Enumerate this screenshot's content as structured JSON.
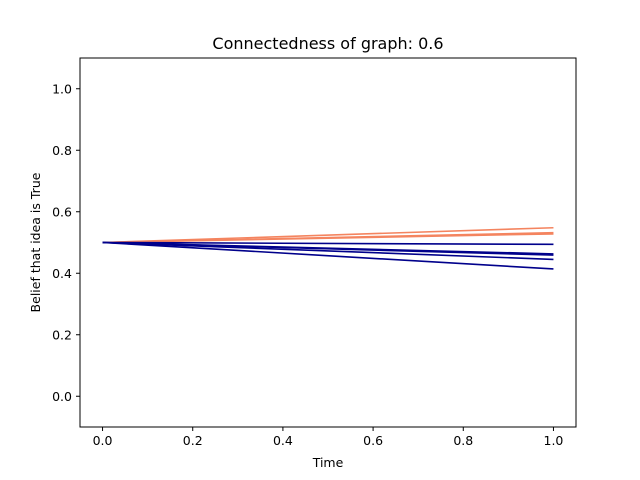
{
  "chart_data": {
    "type": "line",
    "title": "Connectedness of graph: 0.6",
    "xlabel": "Time",
    "ylabel": "Belief that idea is True",
    "xlim": [
      -0.05,
      1.05
    ],
    "ylim": [
      -0.1,
      1.1
    ],
    "xticks": [
      "0.0",
      "0.2",
      "0.4",
      "0.6",
      "0.8",
      "1.0"
    ],
    "yticks": [
      "0.0",
      "0.2",
      "0.4",
      "0.6",
      "0.8",
      "1.0"
    ],
    "grid": false,
    "colors": {
      "positive": "#f4845f",
      "negative": "#00008b"
    },
    "series": [
      {
        "x": [
          0.0,
          1.0
        ],
        "y": [
          0.5,
          0.548
        ],
        "color": "positive"
      },
      {
        "x": [
          0.0,
          1.0
        ],
        "y": [
          0.5,
          0.532
        ],
        "color": "positive"
      },
      {
        "x": [
          0.0,
          1.0
        ],
        "y": [
          0.5,
          0.528
        ],
        "color": "positive"
      },
      {
        "x": [
          0.0,
          1.0
        ],
        "y": [
          0.5,
          0.494
        ],
        "color": "negative"
      },
      {
        "x": [
          0.0,
          1.0
        ],
        "y": [
          0.5,
          0.463
        ],
        "color": "negative"
      },
      {
        "x": [
          0.0,
          1.0
        ],
        "y": [
          0.5,
          0.459
        ],
        "color": "negative"
      },
      {
        "x": [
          0.0,
          1.0
        ],
        "y": [
          0.5,
          0.445
        ],
        "color": "negative"
      },
      {
        "x": [
          0.0,
          1.0
        ],
        "y": [
          0.5,
          0.414
        ],
        "color": "negative"
      }
    ]
  }
}
